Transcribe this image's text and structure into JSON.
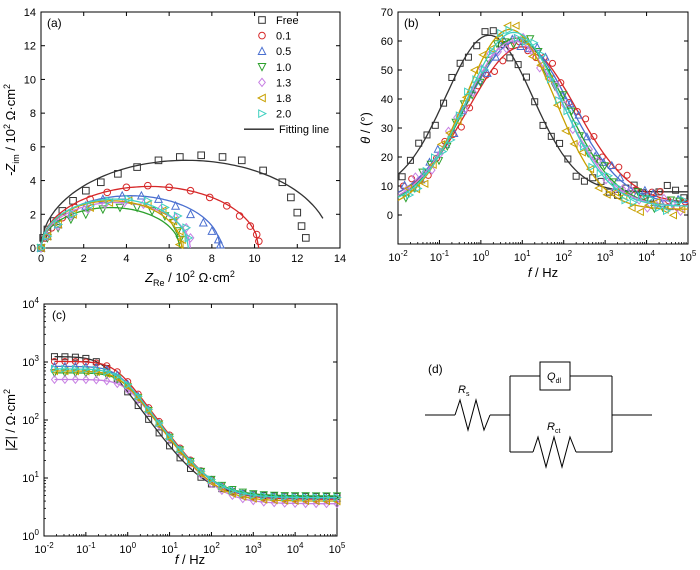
{
  "chart_data": [
    {
      "id": "a",
      "type": "scatter",
      "panel_label": "(a)",
      "xlabel_main": "Z",
      "xlabel_sub": "Re",
      "xlabel_rest": " / 10",
      "xlabel_sup": "2",
      "xlabel_unit": " Ω·cm",
      "xlabel_unit_sup": "2",
      "ylabel_main": "-Z",
      "ylabel_sub": "im",
      "ylabel_rest": " / 10",
      "ylabel_sup": "2",
      "ylabel_unit": " Ω·cm",
      "ylabel_unit_sup": "2",
      "xlim": [
        0,
        14
      ],
      "ylim": [
        0,
        14
      ],
      "xticks": [
        0,
        2,
        4,
        6,
        8,
        10,
        12,
        14
      ],
      "yticks": [
        0,
        2,
        4,
        6,
        8,
        10,
        12,
        14
      ],
      "legend_position": "top-right",
      "legend": [
        "Free",
        "0.1",
        "0.5",
        "1.0",
        "1.3",
        "1.8",
        "2.0",
        "Fitting line"
      ],
      "series": [
        {
          "name": "Free",
          "color": "#333333",
          "marker": "square",
          "points": [
            [
              0.0,
              0.0
            ],
            [
              0.1,
              0.6
            ],
            [
              0.3,
              1.1
            ],
            [
              0.6,
              1.6
            ],
            [
              1.0,
              2.2
            ],
            [
              1.5,
              2.8
            ],
            [
              2.1,
              3.4
            ],
            [
              2.8,
              3.9
            ],
            [
              3.6,
              4.4
            ],
            [
              4.5,
              4.8
            ],
            [
              5.5,
              5.2
            ],
            [
              6.5,
              5.4
            ],
            [
              7.5,
              5.5
            ],
            [
              8.5,
              5.4
            ],
            [
              9.4,
              5.2
            ],
            [
              10.4,
              4.6
            ],
            [
              11.3,
              3.9
            ],
            [
              11.7,
              3.0
            ],
            [
              12.0,
              2.1
            ],
            [
              12.2,
              1.3
            ],
            [
              12.4,
              0.6
            ]
          ],
          "fit": {
            "center": 6.8,
            "a": 6.8,
            "b": 5.2,
            "end": 13.2
          }
        },
        {
          "name": "0.1",
          "color": "#d62728",
          "marker": "circle",
          "points": [
            [
              0.0,
              0.0
            ],
            [
              0.2,
              0.6
            ],
            [
              0.5,
              1.2
            ],
            [
              1.0,
              1.8
            ],
            [
              1.6,
              2.4
            ],
            [
              2.3,
              2.9
            ],
            [
              3.1,
              3.3
            ],
            [
              4.0,
              3.6
            ],
            [
              5.0,
              3.7
            ],
            [
              6.0,
              3.6
            ],
            [
              7.0,
              3.4
            ],
            [
              7.9,
              3.0
            ],
            [
              8.7,
              2.5
            ],
            [
              9.3,
              1.9
            ],
            [
              9.8,
              1.3
            ],
            [
              10.1,
              0.8
            ],
            [
              10.2,
              0.4
            ]
          ],
          "fit": {
            "center": 5.1,
            "a": 5.1,
            "b": 3.65,
            "end": 10.2
          }
        },
        {
          "name": "0.5",
          "color": "#4a6fd0",
          "marker": "triangle-up",
          "points": [
            [
              0.0,
              0.0
            ],
            [
              0.3,
              0.7
            ],
            [
              0.8,
              1.4
            ],
            [
              1.4,
              2.0
            ],
            [
              2.1,
              2.5
            ],
            [
              2.9,
              2.9
            ],
            [
              3.8,
              3.1
            ],
            [
              4.7,
              3.1
            ],
            [
              5.5,
              2.9
            ],
            [
              6.3,
              2.5
            ],
            [
              7.0,
              2.0
            ],
            [
              7.6,
              1.5
            ],
            [
              8.0,
              1.0
            ],
            [
              8.3,
              0.5
            ],
            [
              8.4,
              0.2
            ]
          ],
          "fit": {
            "center": 4.2,
            "a": 4.2,
            "b": 3.1,
            "end": 8.4
          }
        },
        {
          "name": "1.0",
          "color": "#2ca02c",
          "marker": "triangle-down",
          "points": [
            [
              0.0,
              0.0
            ],
            [
              0.3,
              0.6
            ],
            [
              0.8,
              1.2
            ],
            [
              1.4,
              1.7
            ],
            [
              2.1,
              2.0
            ],
            [
              2.9,
              2.3
            ],
            [
              3.7,
              2.4
            ],
            [
              4.5,
              2.4
            ],
            [
              5.2,
              2.2
            ],
            [
              5.8,
              1.9
            ],
            [
              6.2,
              1.5
            ],
            [
              6.4,
              1.0
            ],
            [
              6.5,
              0.5
            ]
          ],
          "fit": {
            "center": 3.25,
            "a": 3.25,
            "b": 2.4,
            "end": 6.5
          }
        },
        {
          "name": "1.3",
          "color": "#c77fe3",
          "marker": "diamond",
          "points": [
            [
              0.0,
              0.0
            ],
            [
              0.3,
              0.7
            ],
            [
              0.8,
              1.3
            ],
            [
              1.4,
              1.9
            ],
            [
              2.2,
              2.3
            ],
            [
              3.0,
              2.6
            ],
            [
              3.9,
              2.7
            ],
            [
              4.8,
              2.6
            ],
            [
              5.6,
              2.3
            ],
            [
              6.3,
              1.8
            ],
            [
              6.8,
              1.2
            ],
            [
              7.0,
              0.6
            ]
          ],
          "fit": {
            "center": 3.5,
            "a": 3.5,
            "b": 2.7,
            "end": 7.0
          }
        },
        {
          "name": "1.8",
          "color": "#c8a000",
          "marker": "triangle-left",
          "points": [
            [
              0.0,
              0.0
            ],
            [
              0.3,
              0.7
            ],
            [
              0.8,
              1.4
            ],
            [
              1.5,
              2.0
            ],
            [
              2.3,
              2.4
            ],
            [
              3.2,
              2.7
            ],
            [
              4.1,
              2.8
            ],
            [
              5.0,
              2.6
            ],
            [
              5.7,
              2.2
            ],
            [
              6.2,
              1.6
            ],
            [
              6.5,
              1.0
            ],
            [
              6.6,
              0.5
            ],
            [
              6.5,
              0.2
            ]
          ],
          "fit": {
            "center": 3.3,
            "a": 3.3,
            "b": 2.8,
            "end": 6.6
          }
        },
        {
          "name": "2.0",
          "color": "#3fd0c0",
          "marker": "triangle-right",
          "points": [
            [
              0.0,
              0.0
            ],
            [
              0.3,
              0.7
            ],
            [
              0.8,
              1.4
            ],
            [
              1.5,
              2.0
            ],
            [
              2.3,
              2.5
            ],
            [
              3.2,
              2.8
            ],
            [
              4.1,
              2.9
            ],
            [
              5.0,
              2.8
            ],
            [
              5.8,
              2.4
            ],
            [
              6.4,
              1.9
            ],
            [
              6.8,
              1.2
            ],
            [
              6.9,
              0.6
            ]
          ],
          "fit": {
            "center": 3.45,
            "a": 3.45,
            "b": 2.9,
            "end": 6.9
          }
        }
      ]
    },
    {
      "id": "b",
      "type": "scatter",
      "panel_label": "(b)",
      "xlabel_main": "f",
      "xlabel_rest": " / Hz",
      "ylabel_main": "θ",
      "ylabel_rest": " / (°)",
      "xscale": "log",
      "xlim_exp": [
        -2,
        5
      ],
      "ylim": [
        -10,
        70
      ],
      "yticks": [
        0,
        10,
        20,
        30,
        40,
        50,
        60,
        70
      ],
      "xticks_exp": [
        -2,
        -1,
        0,
        1,
        2,
        3,
        4,
        5
      ],
      "series": [
        {
          "name": "Free",
          "color": "#333333",
          "marker": "square",
          "peak": 62,
          "center_log": 0.2,
          "sigma": 1.05,
          "base": 8
        },
        {
          "name": "0.1",
          "color": "#d62728",
          "marker": "circle",
          "peak": 58,
          "center_log": 1.0,
          "sigma": 1.3,
          "base": 4
        },
        {
          "name": "0.5",
          "color": "#4a6fd0",
          "marker": "triangle-up",
          "peak": 60,
          "center_log": 0.9,
          "sigma": 1.25,
          "base": 4
        },
        {
          "name": "1.0",
          "color": "#2ca02c",
          "marker": "triangle-down",
          "peak": 61,
          "center_log": 0.85,
          "sigma": 1.2,
          "base": 3
        },
        {
          "name": "1.3",
          "color": "#c77fe3",
          "marker": "diamond",
          "peak": 60,
          "center_log": 0.8,
          "sigma": 1.2,
          "base": 3
        },
        {
          "name": "1.8",
          "color": "#c8a000",
          "marker": "triangle-left",
          "peak": 64,
          "center_log": 0.7,
          "sigma": 1.1,
          "base": 2
        },
        {
          "name": "2.0",
          "color": "#3fd0c0",
          "marker": "triangle-right",
          "peak": 63,
          "center_log": 0.8,
          "sigma": 1.15,
          "base": 3
        }
      ]
    },
    {
      "id": "c",
      "type": "scatter",
      "panel_label": "(c)",
      "xlabel_main": "f",
      "xlabel_rest": " / Hz",
      "ylabel_main": "|Z|",
      "ylabel_rest": " / Ω·cm",
      "ylabel_sup": "2",
      "xscale": "log",
      "yscale": "log",
      "xlim_exp": [
        -2,
        5
      ],
      "ylim_exp": [
        0,
        4
      ],
      "series": [
        {
          "name": "Free",
          "color": "#333333",
          "marker": "square",
          "r_low": 1240,
          "r_high": 4.8,
          "fc_log": -0.6
        },
        {
          "name": "0.1",
          "color": "#d62728",
          "marker": "circle",
          "r_low": 1020,
          "r_high": 4.3,
          "fc_log": -0.3
        },
        {
          "name": "0.5",
          "color": "#4a6fd0",
          "marker": "triangle-up",
          "r_low": 840,
          "r_high": 4.5,
          "fc_log": -0.25
        },
        {
          "name": "1.0",
          "color": "#2ca02c",
          "marker": "triangle-down",
          "r_low": 650,
          "r_high": 4.9,
          "fc_log": -0.15
        },
        {
          "name": "1.3",
          "color": "#c77fe3",
          "marker": "diamond",
          "r_low": 500,
          "r_high": 3.6,
          "fc_log": -0.05
        },
        {
          "name": "1.8",
          "color": "#c8a000",
          "marker": "triangle-left",
          "r_low": 700,
          "r_high": 4.0,
          "fc_log": -0.2
        },
        {
          "name": "2.0",
          "color": "#3fd0c0",
          "marker": "triangle-right",
          "r_low": 760,
          "r_high": 4.6,
          "fc_log": -0.2
        }
      ]
    },
    {
      "id": "d",
      "type": "diagram",
      "panel_label": "(d)",
      "components": [
        {
          "name": "R",
          "sub": "s"
        },
        {
          "name": "Q",
          "sub": "dl"
        },
        {
          "name": "R",
          "sub": "ct"
        }
      ]
    }
  ]
}
